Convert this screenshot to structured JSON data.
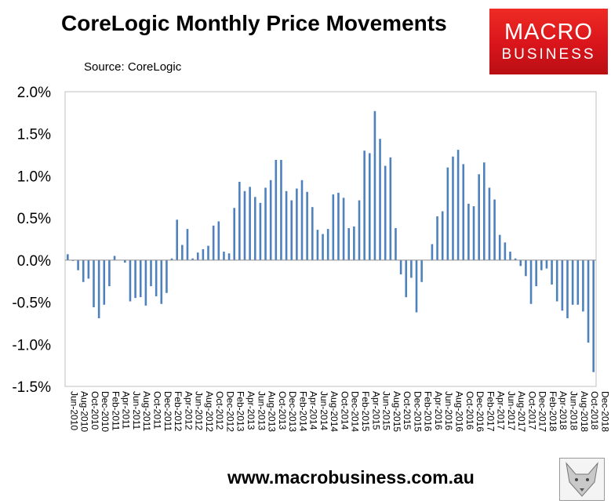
{
  "title": "CoreLogic Monthly Price Movements",
  "source": "Source: CoreLogic",
  "logo": {
    "line1": "MACRO",
    "line2": "BUSINESS"
  },
  "footer": "www.macrobusiness.com.au",
  "chart_data": {
    "type": "bar",
    "bar_color": "#4f81bd",
    "ylim": [
      -1.5,
      2.0
    ],
    "yticks": [
      "2.0%",
      "1.5%",
      "1.0%",
      "0.5%",
      "0.0%",
      "-0.5%",
      "-1.0%",
      "-1.5%"
    ],
    "grid": false,
    "xtick_labels": [
      "Jun-2010",
      "Aug-2010",
      "Oct-2010",
      "Dec-2010",
      "Feb-2011",
      "Apr-2011",
      "Jun-2011",
      "Aug-2011",
      "Oct-2011",
      "Dec-2011",
      "Feb-2012",
      "Apr-2012",
      "Jun-2012",
      "Aug-2012",
      "Oct-2012",
      "Dec-2012",
      "Feb-2013",
      "Apr-2013",
      "Jun-2013",
      "Aug-2013",
      "Oct-2013",
      "Dec-2013",
      "Feb-2014",
      "Apr-2014",
      "Jun-2014",
      "Aug-2014",
      "Oct-2014",
      "Dec-2014",
      "Feb-2015",
      "Apr-2015",
      "Jun-2015",
      "Aug-2015",
      "Oct-2015",
      "Dec-2015",
      "Feb-2016",
      "Apr-2016",
      "Jun-2016",
      "Aug-2016",
      "Oct-2016",
      "Dec-2016",
      "Feb-2017",
      "Apr-2017",
      "Jun-2017",
      "Aug-2017",
      "Oct-2017",
      "Dec-2017",
      "Feb-2018",
      "Apr-2018",
      "Jun-2018",
      "Aug-2018",
      "Oct-2018",
      "Dec-2018"
    ],
    "values": [
      0.07,
      -0.01,
      -0.12,
      -0.26,
      -0.22,
      -0.56,
      -0.69,
      -0.53,
      -0.31,
      0.05,
      0.0,
      -0.03,
      -0.49,
      -0.45,
      -0.44,
      -0.54,
      -0.31,
      -0.43,
      -0.52,
      -0.39,
      0.02,
      0.48,
      0.18,
      0.37,
      0.02,
      0.09,
      0.13,
      0.17,
      0.41,
      0.46,
      0.1,
      0.08,
      0.62,
      0.93,
      0.82,
      0.87,
      0.75,
      0.68,
      0.86,
      0.95,
      1.19,
      1.19,
      0.82,
      0.71,
      0.85,
      0.95,
      0.81,
      0.63,
      0.36,
      0.31,
      0.37,
      0.78,
      0.8,
      0.74,
      0.38,
      0.4,
      0.71,
      1.3,
      1.27,
      1.77,
      1.44,
      1.12,
      1.22,
      0.38,
      -0.17,
      -0.44,
      -0.21,
      -0.62,
      -0.26,
      0.0,
      0.19,
      0.52,
      0.58,
      1.1,
      1.23,
      1.31,
      1.14,
      0.67,
      0.64,
      1.02,
      1.16,
      0.86,
      0.72,
      0.3,
      0.21,
      0.1,
      0.02,
      -0.07,
      -0.19,
      -0.52,
      -0.31,
      -0.12,
      -0.1,
      -0.29,
      -0.49,
      -0.6,
      -0.69,
      -0.53,
      -0.53,
      -0.61,
      -0.98,
      -1.33
    ]
  }
}
